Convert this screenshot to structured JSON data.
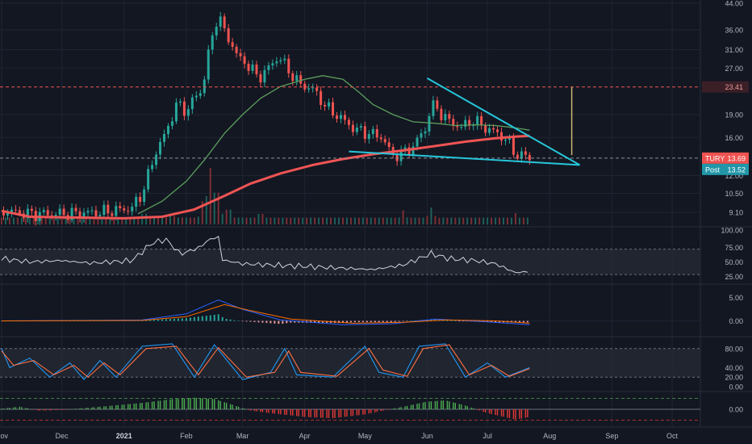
{
  "colors": {
    "background": "#131722",
    "grid": "#1f2433",
    "up": "#26a69a",
    "down": "#ef5350",
    "ma_fast": "#5c9e5c",
    "ma_slow": "#f05454",
    "trendline": "#26c6da",
    "axis_text": "#b2b5be",
    "pane_sep": "#2a2e39",
    "band": "#2a2e39",
    "rsi_line": "#d1d4dc",
    "macd_line": "#2962ff",
    "signal_line": "#ff6d00",
    "stoch_k": "#2196f3",
    "stoch_d": "#ff7043",
    "osc_green": "#4caf50",
    "osc_red": "#e53935",
    "marker_line": "#c8b46e"
  },
  "chart_data": [
    {
      "type": "candlestick",
      "pane": "price",
      "scale": "log",
      "y_ticks": [
        "44.00",
        "36.00",
        "31.00",
        "27.00",
        "23.41",
        "19.00",
        "16.00",
        "13.69",
        "12.00",
        "10.50",
        "9.10"
      ],
      "ylim": [
        8.5,
        44
      ],
      "x_labels": [
        "Nov",
        "Dec",
        "2021",
        "Feb",
        "Mar",
        "Apr",
        "May",
        "Jun",
        "Jul",
        "Aug",
        "Sep",
        "Oct"
      ],
      "x_label_dates": [
        "2020-11-01",
        "2020-12-01",
        "2021-01-01",
        "2021-02-01",
        "2021-03-01",
        "2021-04-01",
        "2021-05-01",
        "2021-06-01",
        "2021-07-01",
        "2021-08-01",
        "2021-09-01",
        "2021-10-01"
      ],
      "close_path": [
        [
          "2020-11-02",
          9.2
        ],
        [
          "2020-11-15",
          9.0
        ],
        [
          "2020-12-01",
          9.0
        ],
        [
          "2020-12-20",
          9.1
        ],
        [
          "2021-01-05",
          9.4
        ],
        [
          "2021-01-10",
          10.5
        ],
        [
          "2021-01-13",
          12.0
        ],
        [
          "2021-01-18",
          15.0
        ],
        [
          "2021-01-22",
          16.5
        ],
        [
          "2021-01-27",
          20.5
        ],
        [
          "2021-02-01",
          19.5
        ],
        [
          "2021-02-05",
          21.5
        ],
        [
          "2021-02-09",
          23.0
        ],
        [
          "2021-02-12",
          30.0
        ],
        [
          "2021-02-15",
          36.0
        ],
        [
          "2021-02-17",
          42.0
        ],
        [
          "2021-02-19",
          36.0
        ],
        [
          "2021-02-23",
          33.0
        ],
        [
          "2021-02-27",
          29.0
        ],
        [
          "2021-03-03",
          28.0
        ],
        [
          "2021-03-09",
          25.0
        ],
        [
          "2021-03-14",
          27.0
        ],
        [
          "2021-03-19",
          29.5
        ],
        [
          "2021-03-23",
          27.0
        ],
        [
          "2021-03-29",
          24.0
        ],
        [
          "2021-04-05",
          23.0
        ],
        [
          "2021-04-12",
          20.0
        ],
        [
          "2021-04-19",
          18.5
        ],
        [
          "2021-04-26",
          17.0
        ],
        [
          "2021-05-03",
          16.5
        ],
        [
          "2021-05-10",
          16.0
        ],
        [
          "2021-05-14",
          14.0
        ],
        [
          "2021-05-20",
          14.2
        ],
        [
          "2021-05-25",
          15.0
        ],
        [
          "2021-05-31",
          17.0
        ],
        [
          "2021-06-03",
          20.5
        ],
        [
          "2021-06-07",
          19.5
        ],
        [
          "2021-06-12",
          18.0
        ],
        [
          "2021-06-18",
          17.3
        ],
        [
          "2021-06-24",
          18.2
        ],
        [
          "2021-06-30",
          17.2
        ],
        [
          "2021-07-06",
          16.5
        ],
        [
          "2021-07-10",
          15.8
        ],
        [
          "2021-07-14",
          14.5
        ],
        [
          "2021-07-17",
          13.8
        ],
        [
          "2021-07-20",
          14.0
        ],
        [
          "2021-07-22",
          13.69
        ]
      ],
      "moving_averages": [
        {
          "name": "fast",
          "color_key": "ma_fast",
          "points": [
            [
              "2021-01-08",
              9.0
            ],
            [
              "2021-01-20",
              9.9
            ],
            [
              "2021-02-01",
              11.5
            ],
            [
              "2021-02-10",
              13.5
            ],
            [
              "2021-02-20",
              16.5
            ],
            [
              "2021-03-01",
              19.0
            ],
            [
              "2021-03-10",
              21.5
            ],
            [
              "2021-03-20",
              23.5
            ],
            [
              "2021-04-01",
              24.8
            ],
            [
              "2021-04-10",
              25.5
            ],
            [
              "2021-04-20",
              24.8
            ],
            [
              "2021-04-28",
              22.5
            ],
            [
              "2021-05-05",
              20.5
            ],
            [
              "2021-05-15",
              19.0
            ],
            [
              "2021-05-25",
              18.0
            ],
            [
              "2021-06-05",
              17.8
            ],
            [
              "2021-06-15",
              17.5
            ],
            [
              "2021-06-25",
              17.6
            ],
            [
              "2021-07-05",
              17.5
            ],
            [
              "2021-07-15",
              17.2
            ],
            [
              "2021-07-22",
              16.9
            ]
          ]
        },
        {
          "name": "slow",
          "color_key": "ma_slow",
          "points": [
            [
              "2020-11-01",
              9.2
            ],
            [
              "2020-11-15",
              8.8
            ],
            [
              "2021-01-01",
              8.7
            ],
            [
              "2021-01-20",
              8.8
            ],
            [
              "2021-02-05",
              9.3
            ],
            [
              "2021-02-20",
              10.3
            ],
            [
              "2021-03-05",
              11.3
            ],
            [
              "2021-03-20",
              12.2
            ],
            [
              "2021-04-05",
              13.0
            ],
            [
              "2021-04-20",
              13.6
            ],
            [
              "2021-05-05",
              14.1
            ],
            [
              "2021-05-20",
              14.5
            ],
            [
              "2021-06-05",
              15.0
            ],
            [
              "2021-06-20",
              15.5
            ],
            [
              "2021-07-05",
              15.9
            ],
            [
              "2021-07-15",
              16.1
            ],
            [
              "2021-07-22",
              16.2
            ]
          ]
        }
      ],
      "trendlines": [
        {
          "name": "upper",
          "start": [
            "2021-06-01",
            25.0
          ],
          "end": [
            "2021-08-16",
            13.0
          ]
        },
        {
          "name": "lower",
          "start": [
            "2021-04-23",
            14.4
          ],
          "end": [
            "2021-08-16",
            13.0
          ]
        }
      ],
      "levels": [
        {
          "name": "target",
          "value": 23.41,
          "label": "23.41"
        },
        {
          "name": "last",
          "value": 13.69,
          "label": "13.69"
        }
      ],
      "vertical_marker": {
        "date": "2021-08-12",
        "from": 23.41,
        "to": 14.0
      },
      "price_badge": {
        "ticker": "TURY",
        "value": "13.69"
      },
      "post_badge": {
        "label": "Post",
        "value": "13.52"
      }
    },
    {
      "type": "bar",
      "pane": "volume",
      "name": "volume",
      "points": [
        [
          "2021-01-11",
          0.25
        ],
        [
          "2021-01-25",
          0.2
        ],
        [
          "2021-02-10",
          0.55
        ],
        [
          "2021-02-13",
          1.0
        ],
        [
          "2021-02-16",
          0.75
        ],
        [
          "2021-02-22",
          0.35
        ],
        [
          "2021-03-10",
          0.25
        ],
        [
          "2021-05-20",
          0.25
        ],
        [
          "2021-06-03",
          0.3
        ],
        [
          "2021-07-15",
          0.2
        ]
      ]
    },
    {
      "type": "line",
      "pane": "rsi",
      "y_ticks": [
        "100.00",
        "75.00",
        "50.00",
        "25.00"
      ],
      "ylim": [
        20,
        100
      ],
      "band": [
        30,
        70
      ],
      "points": [
        [
          "2020-11-01",
          55
        ],
        [
          "2020-11-15",
          50
        ],
        [
          "2020-12-01",
          52
        ],
        [
          "2020-12-15",
          48
        ],
        [
          "2021-01-05",
          52
        ],
        [
          "2021-01-15",
          80
        ],
        [
          "2021-01-22",
          85
        ],
        [
          "2021-01-29",
          62
        ],
        [
          "2021-02-08",
          73
        ],
        [
          "2021-02-12",
          85
        ],
        [
          "2021-02-17",
          89
        ],
        [
          "2021-02-19",
          53
        ],
        [
          "2021-03-01",
          47
        ],
        [
          "2021-03-15",
          45
        ],
        [
          "2021-04-01",
          43
        ],
        [
          "2021-04-20",
          40
        ],
        [
          "2021-05-05",
          38
        ],
        [
          "2021-05-20",
          45
        ],
        [
          "2021-06-03",
          63
        ],
        [
          "2021-06-12",
          55
        ],
        [
          "2021-06-25",
          52
        ],
        [
          "2021-07-05",
          47
        ],
        [
          "2021-07-15",
          33
        ],
        [
          "2021-07-22",
          35
        ]
      ]
    },
    {
      "type": "line",
      "pane": "macd",
      "y_ticks": [
        "5.00",
        "0.00"
      ],
      "ylim": [
        -2.5,
        7
      ],
      "series": [
        {
          "name": "macd",
          "color_key": "macd_line",
          "points": [
            [
              "2020-11-01",
              0
            ],
            [
              "2021-01-10",
              0.2
            ],
            [
              "2021-02-01",
              1.5
            ],
            [
              "2021-02-17",
              4.5
            ],
            [
              "2021-03-01",
              2.5
            ],
            [
              "2021-03-20",
              0.2
            ],
            [
              "2021-04-20",
              -0.8
            ],
            [
              "2021-05-15",
              -0.6
            ],
            [
              "2021-06-05",
              0.4
            ],
            [
              "2021-07-01",
              -0.2
            ],
            [
              "2021-07-22",
              -0.8
            ]
          ]
        },
        {
          "name": "signal",
          "color_key": "signal_line",
          "points": [
            [
              "2020-11-01",
              0
            ],
            [
              "2021-01-10",
              0.1
            ],
            [
              "2021-02-01",
              0.9
            ],
            [
              "2021-02-20",
              3.5
            ],
            [
              "2021-03-05",
              2.2
            ],
            [
              "2021-03-25",
              0.4
            ],
            [
              "2021-04-25",
              -0.5
            ],
            [
              "2021-05-20",
              -0.3
            ],
            [
              "2021-06-10",
              0.2
            ],
            [
              "2021-07-05",
              0.0
            ],
            [
              "2021-07-22",
              -0.5
            ]
          ]
        }
      ]
    },
    {
      "type": "line",
      "pane": "stochastic",
      "y_ticks": [
        "80.00",
        "40.00",
        "20.00",
        "0.00"
      ],
      "ylim": [
        -5,
        100
      ],
      "band": [
        20,
        80
      ],
      "series": [
        {
          "name": "k",
          "color_key": "stoch_k",
          "points": [
            [
              "2020-11-01",
              80
            ],
            [
              "2020-11-05",
              40
            ],
            [
              "2020-11-15",
              60
            ],
            [
              "2020-11-25",
              20
            ],
            [
              "2020-12-05",
              50
            ],
            [
              "2020-12-12",
              15
            ],
            [
              "2020-12-20",
              55
            ],
            [
              "2020-12-28",
              20
            ],
            [
              "2021-01-10",
              85
            ],
            [
              "2021-01-25",
              90
            ],
            [
              "2021-02-05",
              20
            ],
            [
              "2021-02-15",
              88
            ],
            [
              "2021-03-01",
              15
            ],
            [
              "2021-03-15",
              30
            ],
            [
              "2021-03-22",
              80
            ],
            [
              "2021-03-28",
              25
            ],
            [
              "2021-04-15",
              20
            ],
            [
              "2021-05-01",
              85
            ],
            [
              "2021-05-08",
              30
            ],
            [
              "2021-05-20",
              20
            ],
            [
              "2021-05-28",
              85
            ],
            [
              "2021-06-10",
              90
            ],
            [
              "2021-06-20",
              20
            ],
            [
              "2021-07-01",
              50
            ],
            [
              "2021-07-10",
              20
            ],
            [
              "2021-07-22",
              40
            ]
          ]
        },
        {
          "name": "d",
          "color_key": "stoch_d",
          "points": [
            [
              "2020-11-01",
              75
            ],
            [
              "2020-11-07",
              45
            ],
            [
              "2020-11-17",
              55
            ],
            [
              "2020-11-27",
              25
            ],
            [
              "2020-12-07",
              45
            ],
            [
              "2020-12-14",
              20
            ],
            [
              "2020-12-22",
              50
            ],
            [
              "2020-12-30",
              25
            ],
            [
              "2021-01-12",
              80
            ],
            [
              "2021-01-27",
              85
            ],
            [
              "2021-02-07",
              25
            ],
            [
              "2021-02-17",
              82
            ],
            [
              "2021-03-03",
              20
            ],
            [
              "2021-03-17",
              30
            ],
            [
              "2021-03-24",
              75
            ],
            [
              "2021-03-30",
              30
            ],
            [
              "2021-04-17",
              22
            ],
            [
              "2021-05-03",
              80
            ],
            [
              "2021-05-10",
              35
            ],
            [
              "2021-05-22",
              22
            ],
            [
              "2021-05-30",
              80
            ],
            [
              "2021-06-12",
              88
            ],
            [
              "2021-06-22",
              25
            ],
            [
              "2021-07-03",
              45
            ],
            [
              "2021-07-12",
              22
            ],
            [
              "2021-07-22",
              38
            ]
          ]
        }
      ]
    },
    {
      "type": "histogram",
      "pane": "oscillator",
      "y_ticks": [
        "0.00"
      ],
      "ylim": [
        -1.2,
        1.2
      ],
      "points": [
        [
          "2020-11-01",
          0.05
        ],
        [
          "2020-11-10",
          0.2
        ],
        [
          "2020-11-20",
          -0.1
        ],
        [
          "2020-12-01",
          -0.05
        ],
        [
          "2020-12-20",
          0.2
        ],
        [
          "2021-01-10",
          0.5
        ],
        [
          "2021-01-25",
          0.8
        ],
        [
          "2021-02-05",
          0.9
        ],
        [
          "2021-02-15",
          0.8
        ],
        [
          "2021-02-25",
          0.3
        ],
        [
          "2021-03-05",
          -0.1
        ],
        [
          "2021-03-15",
          -0.3
        ],
        [
          "2021-04-01",
          -0.6
        ],
        [
          "2021-04-15",
          -0.7
        ],
        [
          "2021-05-01",
          -0.4
        ],
        [
          "2021-05-10",
          -0.1
        ],
        [
          "2021-05-20",
          0.2
        ],
        [
          "2021-06-01",
          0.6
        ],
        [
          "2021-06-10",
          0.7
        ],
        [
          "2021-06-20",
          0.3
        ],
        [
          "2021-07-01",
          -0.3
        ],
        [
          "2021-07-15",
          -0.8
        ],
        [
          "2021-07-22",
          -0.6
        ]
      ]
    }
  ]
}
